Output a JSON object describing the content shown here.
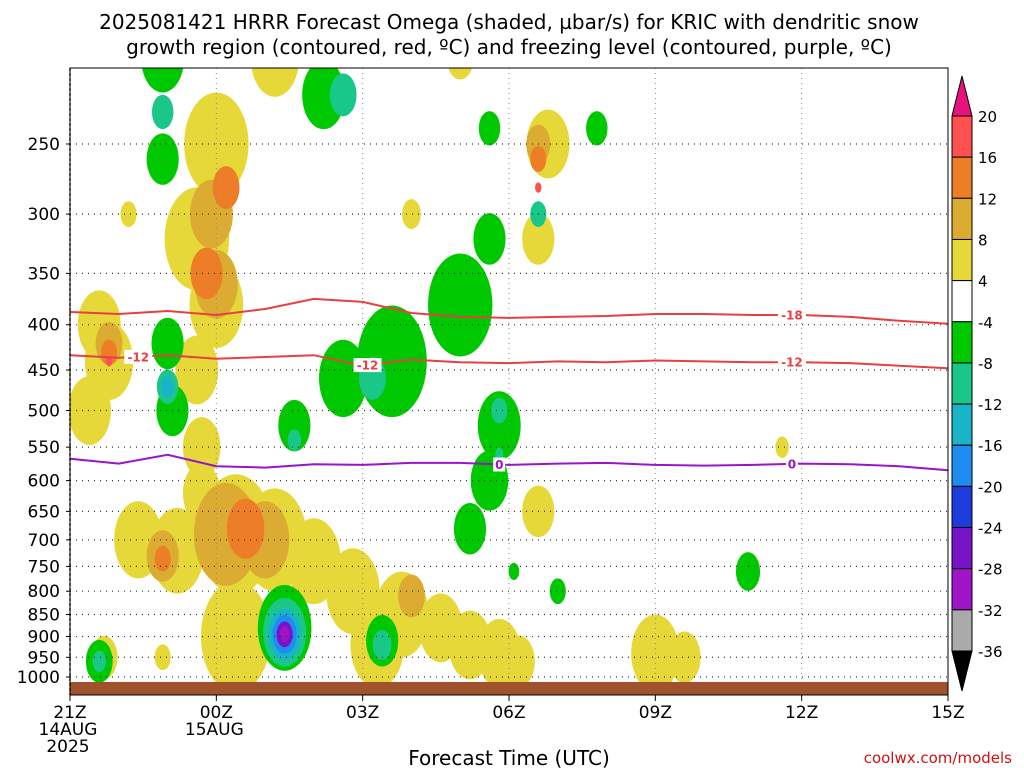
{
  "title": {
    "line1": "2025081421 HRRR Forecast Omega (shaded, µbar/s) for KRIC with dendritic snow",
    "line2": "growth region (contoured, red, ºC) and freezing level (contoured, purple, ºC)"
  },
  "credit": "coolwx.com/models",
  "chart_data": {
    "type": "heatmap",
    "title": "2025081421 HRRR Forecast Omega (shaded, µbar/s) for KRIC with dendritic snow growth region (contoured, red, ºC) and freezing level (contoured, purple, ºC)",
    "xlabel": "Forecast Time (UTC)",
    "ylabel": "",
    "x_ticks": [
      {
        "hour": 0,
        "lines": [
          "21Z",
          "14AUG",
          "2025"
        ]
      },
      {
        "hour": 3,
        "lines": [
          "00Z",
          "15AUG"
        ]
      },
      {
        "hour": 6,
        "lines": [
          "03Z"
        ]
      },
      {
        "hour": 9,
        "lines": [
          "06Z"
        ]
      },
      {
        "hour": 12,
        "lines": [
          "09Z"
        ]
      },
      {
        "hour": 15,
        "lines": [
          "12Z"
        ]
      },
      {
        "hour": 18,
        "lines": [
          "15Z"
        ]
      }
    ],
    "xlim": [
      0,
      18
    ],
    "y_ticks": [
      250,
      300,
      350,
      400,
      450,
      500,
      550,
      600,
      650,
      700,
      750,
      800,
      850,
      900,
      950,
      1000
    ],
    "ylim_hPa": [
      1030,
      200
    ],
    "colorbar": {
      "labels": [
        "20",
        "16",
        "12",
        "8",
        "4",
        "-4",
        "-8",
        "-12",
        "-16",
        "-20",
        "-24",
        "-28",
        "-32",
        "-36"
      ],
      "colors": [
        "#ff5050",
        "#ee7d28",
        "#dcab32",
        "#e6d838",
        "#ffffff",
        "#00c800",
        "#19c888",
        "#19b4c8",
        "#1e8cf0",
        "#1e3cdc",
        "#7814c8",
        "#a014c8",
        "#aaaaaa"
      ],
      "top_arrow_color": "#e8127c",
      "bottom_arrow_color": "#000000"
    },
    "shading": [
      {
        "level": "4",
        "color": "#e6d838",
        "cells": [
          [
            0.6,
            400,
            0.8
          ],
          [
            0.8,
            440,
            0.9
          ],
          [
            0.4,
            500,
            0.8
          ],
          [
            1.2,
            300,
            0.3
          ],
          [
            3.0,
            250,
            1.2
          ],
          [
            2.6,
            320,
            1.2
          ],
          [
            3.0,
            380,
            1.0
          ],
          [
            2.6,
            450,
            0.8
          ],
          [
            2.7,
            550,
            0.7
          ],
          [
            2.7,
            620,
            0.7
          ],
          [
            1.4,
            700,
            0.9
          ],
          [
            2.2,
            720,
            1.0
          ],
          [
            3.4,
            690,
            1.4
          ],
          [
            4.2,
            700,
            1.2
          ],
          [
            5.0,
            740,
            1.0
          ],
          [
            5.8,
            800,
            1.0
          ],
          [
            6.8,
            850,
            1.0
          ],
          [
            7.6,
            880,
            0.8
          ],
          [
            8.2,
            920,
            0.8
          ],
          [
            8.8,
            940,
            0.8
          ],
          [
            9.2,
            960,
            0.6
          ],
          [
            9.6,
            650,
            0.6
          ],
          [
            12.0,
            940,
            0.9
          ],
          [
            12.6,
            950,
            0.6
          ],
          [
            9.8,
            250,
            0.8
          ],
          [
            9.6,
            320,
            0.6
          ],
          [
            4.2,
            200,
            0.9
          ],
          [
            7.0,
            300,
            0.35
          ],
          [
            8.0,
            200,
            0.5
          ],
          [
            14.6,
            550,
            0.25
          ],
          [
            0.7,
            950,
            0.5
          ],
          [
            3.4,
            900,
            1.3
          ],
          [
            6.3,
            920,
            1.0
          ],
          [
            1.9,
            950,
            0.3
          ]
        ]
      },
      {
        "level": "8",
        "color": "#dcab32",
        "cells": [
          [
            0.8,
            420,
            0.5
          ],
          [
            2.9,
            300,
            0.8
          ],
          [
            3.0,
            360,
            0.8
          ],
          [
            3.2,
            690,
            1.2
          ],
          [
            4.0,
            700,
            0.9
          ],
          [
            1.9,
            730,
            0.6
          ],
          [
            7.0,
            810,
            0.5
          ],
          [
            9.6,
            250,
            0.45
          ]
        ]
      },
      {
        "level": "12",
        "color": "#ee7d28",
        "cells": [
          [
            0.8,
            430,
            0.3
          ],
          [
            3.2,
            280,
            0.5
          ],
          [
            2.8,
            350,
            0.6
          ],
          [
            3.6,
            680,
            0.7
          ],
          [
            1.9,
            735,
            0.3
          ],
          [
            9.6,
            260,
            0.3
          ]
        ]
      },
      {
        "level": "16",
        "color": "#ff5050",
        "cells": [
          [
            0.8,
            440,
            0.12
          ],
          [
            9.6,
            280,
            0.12
          ]
        ]
      },
      {
        "level": "-4",
        "color": "#00c800",
        "cells": [
          [
            1.9,
            200,
            0.8
          ],
          [
            1.9,
            260,
            0.6
          ],
          [
            2.0,
            420,
            0.6
          ],
          [
            2.1,
            500,
            0.6
          ],
          [
            5.2,
            220,
            0.8
          ],
          [
            8.6,
            240,
            0.4
          ],
          [
            8.6,
            320,
            0.6
          ],
          [
            8.0,
            380,
            1.2
          ],
          [
            6.6,
            440,
            1.3
          ],
          [
            5.6,
            460,
            0.9
          ],
          [
            4.6,
            520,
            0.6
          ],
          [
            8.8,
            520,
            0.8
          ],
          [
            8.6,
            600,
            0.7
          ],
          [
            8.2,
            680,
            0.6
          ],
          [
            10.8,
            240,
            0.4
          ],
          [
            13.9,
            760,
            0.45
          ],
          [
            9.1,
            760,
            0.2
          ],
          [
            10.0,
            800,
            0.3
          ],
          [
            4.4,
            880,
            1.0
          ],
          [
            6.4,
            910,
            0.6
          ],
          [
            0.6,
            960,
            0.5
          ]
        ]
      },
      {
        "level": "-8",
        "color": "#19c888",
        "cells": [
          [
            1.9,
            230,
            0.4
          ],
          [
            2.0,
            470,
            0.4
          ],
          [
            5.6,
            220,
            0.5
          ],
          [
            6.2,
            460,
            0.5
          ],
          [
            4.6,
            540,
            0.25
          ],
          [
            8.8,
            500,
            0.3
          ],
          [
            8.8,
            560,
            0.15
          ],
          [
            9.6,
            300,
            0.3
          ],
          [
            4.4,
            890,
            0.8
          ],
          [
            6.4,
            920,
            0.35
          ],
          [
            0.6,
            960,
            0.25
          ]
        ]
      },
      {
        "level": "-12",
        "color": "#19b4c8",
        "cells": [
          [
            2.0,
            470,
            0.25
          ],
          [
            4.4,
            895,
            0.6
          ]
        ]
      },
      {
        "level": "-16",
        "color": "#1e8cf0",
        "cells": [
          [
            4.4,
            895,
            0.45
          ]
        ]
      },
      {
        "level": "-24",
        "color": "#7814c8",
        "cells": [
          [
            4.4,
            895,
            0.3
          ]
        ]
      },
      {
        "level": "-28",
        "color": "#a014c8",
        "cells": [
          [
            4.4,
            895,
            0.18
          ]
        ]
      }
    ],
    "contours": [
      {
        "value": -18,
        "color": "#e84040",
        "label": "-18",
        "x": [
          0,
          1,
          2,
          3,
          4,
          5,
          6,
          7,
          8,
          9,
          10,
          11,
          12,
          13,
          14,
          15,
          16,
          17,
          18
        ],
        "y": [
          387,
          389,
          386,
          390,
          384,
          374,
          377,
          388,
          392,
          393,
          392,
          391,
          389,
          389,
          390,
          390,
          392,
          396,
          399
        ]
      },
      {
        "value": -12,
        "color": "#e84040",
        "label": "-12",
        "x": [
          0,
          1,
          2,
          3,
          4,
          5,
          6,
          7,
          8,
          9,
          10,
          11,
          12,
          13,
          14,
          15,
          16,
          17,
          18
        ],
        "y": [
          433,
          436,
          433,
          437,
          435,
          433,
          445,
          438,
          441,
          442,
          440,
          441,
          439,
          440,
          441,
          441,
          442,
          445,
          448
        ]
      },
      {
        "value": 0,
        "color": "#9a14c8",
        "label": "0",
        "x": [
          0,
          1,
          2,
          3,
          4,
          5,
          6,
          7,
          8,
          9,
          10,
          11,
          12,
          13,
          14,
          15,
          16,
          17,
          18
        ],
        "y": [
          567,
          574,
          561,
          578,
          580,
          575,
          576,
          573,
          573,
          576,
          574,
          573,
          576,
          577,
          576,
          574,
          575,
          578,
          584
        ]
      }
    ],
    "contour_labels": [
      {
        "contour": -18,
        "x": 14.8
      },
      {
        "contour": -12,
        "x": 1.4
      },
      {
        "contour": -12,
        "x": 6.1
      },
      {
        "contour": -12,
        "x": 14.8
      },
      {
        "contour": 0,
        "x": 8.8
      },
      {
        "contour": 0,
        "x": 14.8
      }
    ],
    "terrain_color": "#a0522d",
    "surface_hPa": 1013
  }
}
